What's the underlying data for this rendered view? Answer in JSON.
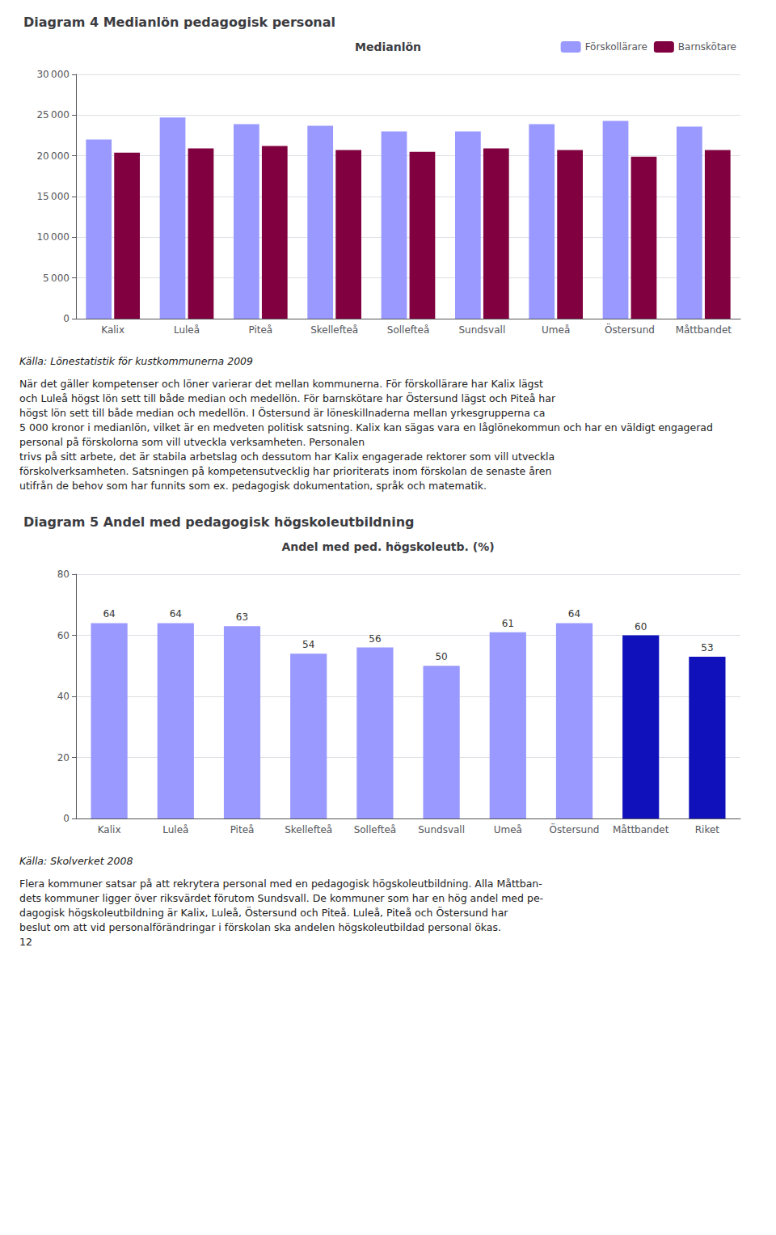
{
  "chart_data": [
    {
      "type": "bar",
      "title": "Diagram 4 Medianlön pedagogisk personal",
      "subtitle": "Medianlön",
      "categories": [
        "Kalix",
        "Luleå",
        "Piteå",
        "Skellefteå",
        "Sollefteå",
        "Sundsvall",
        "Umeå",
        "Östersund",
        "Måttbandet"
      ],
      "series": [
        {
          "name": "Förskollärare",
          "color": "#9999FF",
          "values": [
            22000,
            24700,
            23900,
            23700,
            23000,
            23000,
            23900,
            24300,
            23600
          ]
        },
        {
          "name": "Barnskötare",
          "color": "#800040",
          "values": [
            20400,
            20900,
            21200,
            20700,
            20500,
            20900,
            20700,
            19900,
            20700
          ]
        }
      ],
      "ylim": [
        0,
        30000
      ],
      "yticks": [
        0,
        {
          "value": 5000,
          "label": "5 000"
        },
        {
          "value": 10000,
          "label": "10 000"
        },
        {
          "value": 15000,
          "label": "15 000"
        },
        {
          "value": 20000,
          "label": "20 000"
        },
        {
          "value": 25000,
          "label": "25 000"
        },
        {
          "value": 30000,
          "label": "30 000"
        }
      ],
      "grid": true,
      "legend": "upper right",
      "annotations": [
        "Källa: Lönestatistik för kustkommunerna 2009",
        "När det gäller kompetenser och löner varierar det mellan kommunerna. För förskollärare har Kalix lägst",
        "och Luleå högst lön sett till både median och medellön. För barnskötare har Östersund lägst och Piteå har",
        "högst lön sett till både median och medellön. I Östersund är löneskillnaderna mellan yrkesgrupperna ca",
        "5 000 kronor i medianlön, vilket är en medveten politisk satsning. Kalix kan sägas vara en låglönekommun och har en väldigt engagerad personal på förskolorna som vill utveckla verksamheten. Personalen",
        "trivs på sitt arbete, det är stabila arbetslag och dessutom har Kalix engagerade rektorer som vill utveckla",
        "förskolverksamheten. Satsningen på kompetensutvecklig har prioriterats inom förskolan de senaste åren",
        "utifrån de behov som har funnits som ex. pedagogisk dokumentation, språk och matematik."
      ]
    },
    {
      "type": "bar",
      "title": "Diagram 5 Andel med pedagogisk högskoleutbildning",
      "subtitle": "Andel med ped. högskoleutb. (%)",
      "categories": [
        "Kalix",
        "Luleå",
        "Piteå",
        "Skellefteå",
        "Sollefteå",
        "Sundsvall",
        "Umeå",
        "Östersund",
        "Måttbandet",
        "Riket"
      ],
      "values": [
        64,
        64,
        63,
        54,
        56,
        50,
        61,
        64,
        60,
        53
      ],
      "colors": [
        "#9999FF",
        "#9999FF",
        "#9999FF",
        "#9999FF",
        "#9999FF",
        "#9999FF",
        "#9999FF",
        "#9999FF",
        "#1111BB",
        "#1111BB"
      ],
      "ylim": [
        0,
        80
      ],
      "yticks": [
        0,
        20,
        40,
        60,
        80
      ],
      "grid": true,
      "data_labels": true,
      "annotations": [
        "Källa: Skolverket 2008",
        "Flera kommuner satsar på att rekrytera personal med en pedagogisk högskoleutbildning. Alla Måttban-",
        "dets kommuner ligger över riksvärdet förutom Sundsvall. De kommuner som har en hög andel med pe-",
        "dagogisk högskoleutbildning är Kalix, Luleå, Östersund och Piteå. Luleå, Piteå och Östersund har",
        "beslut om att vid personalförändringar i förskolan ska andelen högskoleutbildad personal ökas.",
        "12"
      ]
    }
  ]
}
